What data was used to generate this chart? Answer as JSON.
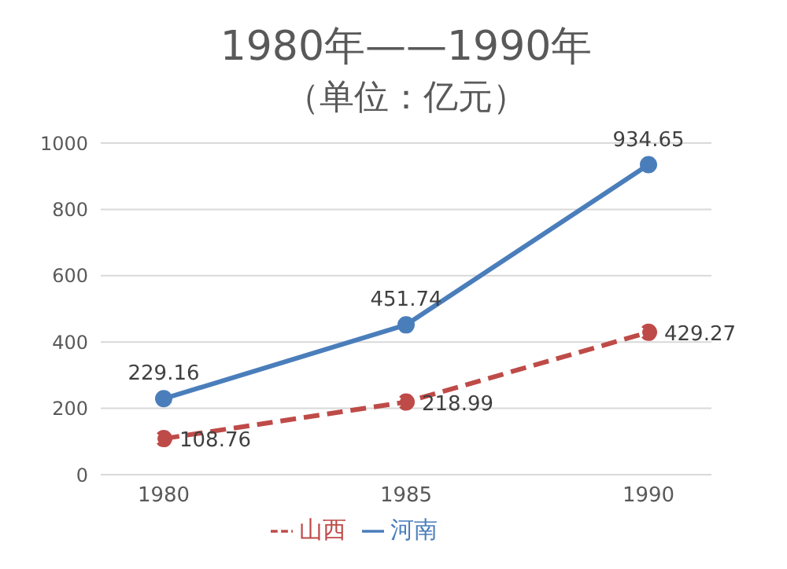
{
  "chart_data": {
    "type": "line",
    "title": "1980年——1990年",
    "subtitle": "（单位：亿元）",
    "categories": [
      "1980",
      "1985",
      "1990"
    ],
    "series": [
      {
        "name": "河南",
        "color": "#4a7ebb",
        "values": [
          229.16,
          451.74,
          934.65
        ],
        "line_style": "solid"
      },
      {
        "name": "山西",
        "color": "#be4b48",
        "values": [
          108.76,
          218.99,
          429.27
        ],
        "line_style": "dashed"
      }
    ],
    "ylim": [
      0,
      1000
    ],
    "yticks": [
      0,
      200,
      400,
      600,
      800,
      1000
    ],
    "grid": "y",
    "legend": "bottom",
    "marker": "circle",
    "data_labels": true
  }
}
